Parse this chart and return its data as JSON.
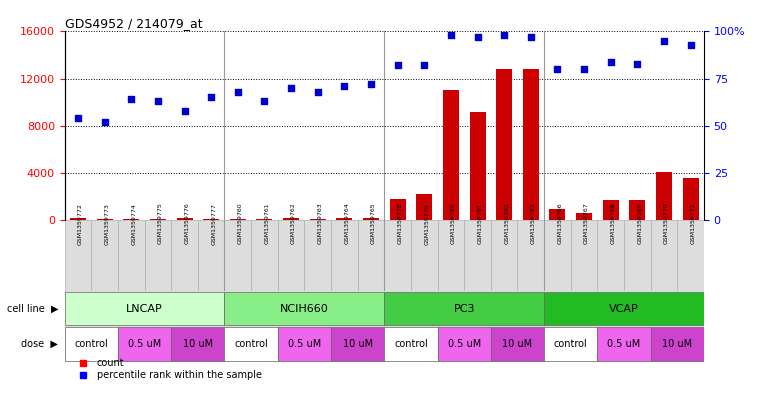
{
  "title": "GDS4952 / 214079_at",
  "samples": [
    "GSM1359772",
    "GSM1359773",
    "GSM1359774",
    "GSM1359775",
    "GSM1359776",
    "GSM1359777",
    "GSM1359760",
    "GSM1359761",
    "GSM1359762",
    "GSM1359763",
    "GSM1359764",
    "GSM1359765",
    "GSM1359778",
    "GSM1359779",
    "GSM1359780",
    "GSM1359781",
    "GSM1359782",
    "GSM1359783",
    "GSM1359766",
    "GSM1359767",
    "GSM1359768",
    "GSM1359769",
    "GSM1359770",
    "GSM1359771"
  ],
  "counts": [
    150,
    120,
    100,
    90,
    200,
    80,
    80,
    100,
    150,
    120,
    180,
    160,
    1800,
    2200,
    11000,
    9200,
    12800,
    12800,
    900,
    600,
    1700,
    1700,
    4100,
    3600
  ],
  "percentiles": [
    54,
    52,
    64,
    63,
    58,
    65,
    68,
    63,
    70,
    68,
    71,
    72,
    82,
    82,
    98,
    97,
    98,
    97,
    80,
    80,
    84,
    83,
    95,
    93
  ],
  "cell_lines": [
    {
      "name": "LNCAP",
      "start": 0,
      "end": 6,
      "color": "#ccffcc"
    },
    {
      "name": "NCIH660",
      "start": 6,
      "end": 12,
      "color": "#88ee88"
    },
    {
      "name": "PC3",
      "start": 12,
      "end": 18,
      "color": "#44cc44"
    },
    {
      "name": "VCAP",
      "start": 18,
      "end": 24,
      "color": "#22bb22"
    }
  ],
  "doses": [
    {
      "name": "control",
      "start": 0,
      "end": 2,
      "color": "#ffffff"
    },
    {
      "name": "0.5 uM",
      "start": 2,
      "end": 4,
      "color": "#ee66ee"
    },
    {
      "name": "10 uM",
      "start": 4,
      "end": 6,
      "color": "#cc44cc"
    },
    {
      "name": "control",
      "start": 6,
      "end": 8,
      "color": "#ffffff"
    },
    {
      "name": "0.5 uM",
      "start": 8,
      "end": 10,
      "color": "#ee66ee"
    },
    {
      "name": "10 uM",
      "start": 10,
      "end": 12,
      "color": "#cc44cc"
    },
    {
      "name": "control",
      "start": 12,
      "end": 14,
      "color": "#ffffff"
    },
    {
      "name": "0.5 uM",
      "start": 14,
      "end": 16,
      "color": "#ee66ee"
    },
    {
      "name": "10 uM",
      "start": 16,
      "end": 18,
      "color": "#cc44cc"
    },
    {
      "name": "control",
      "start": 18,
      "end": 20,
      "color": "#ffffff"
    },
    {
      "name": "0.5 uM",
      "start": 20,
      "end": 22,
      "color": "#ee66ee"
    },
    {
      "name": "10 uM",
      "start": 22,
      "end": 24,
      "color": "#cc44cc"
    }
  ],
  "bar_color": "#cc0000",
  "dot_color": "#0000cc",
  "ylim_left": [
    0,
    16000
  ],
  "ylim_right": [
    0,
    100
  ],
  "yticks_left": [
    0,
    4000,
    8000,
    12000,
    16000
  ],
  "yticks_right": [
    0,
    25,
    50,
    75,
    100
  ],
  "yticklabels_right": [
    "0",
    "25",
    "50",
    "75",
    "100%"
  ],
  "background_color": "#ffffff",
  "grid_color": "#000000",
  "xtick_bg": "#dddddd",
  "group_sep_color": "#999999"
}
